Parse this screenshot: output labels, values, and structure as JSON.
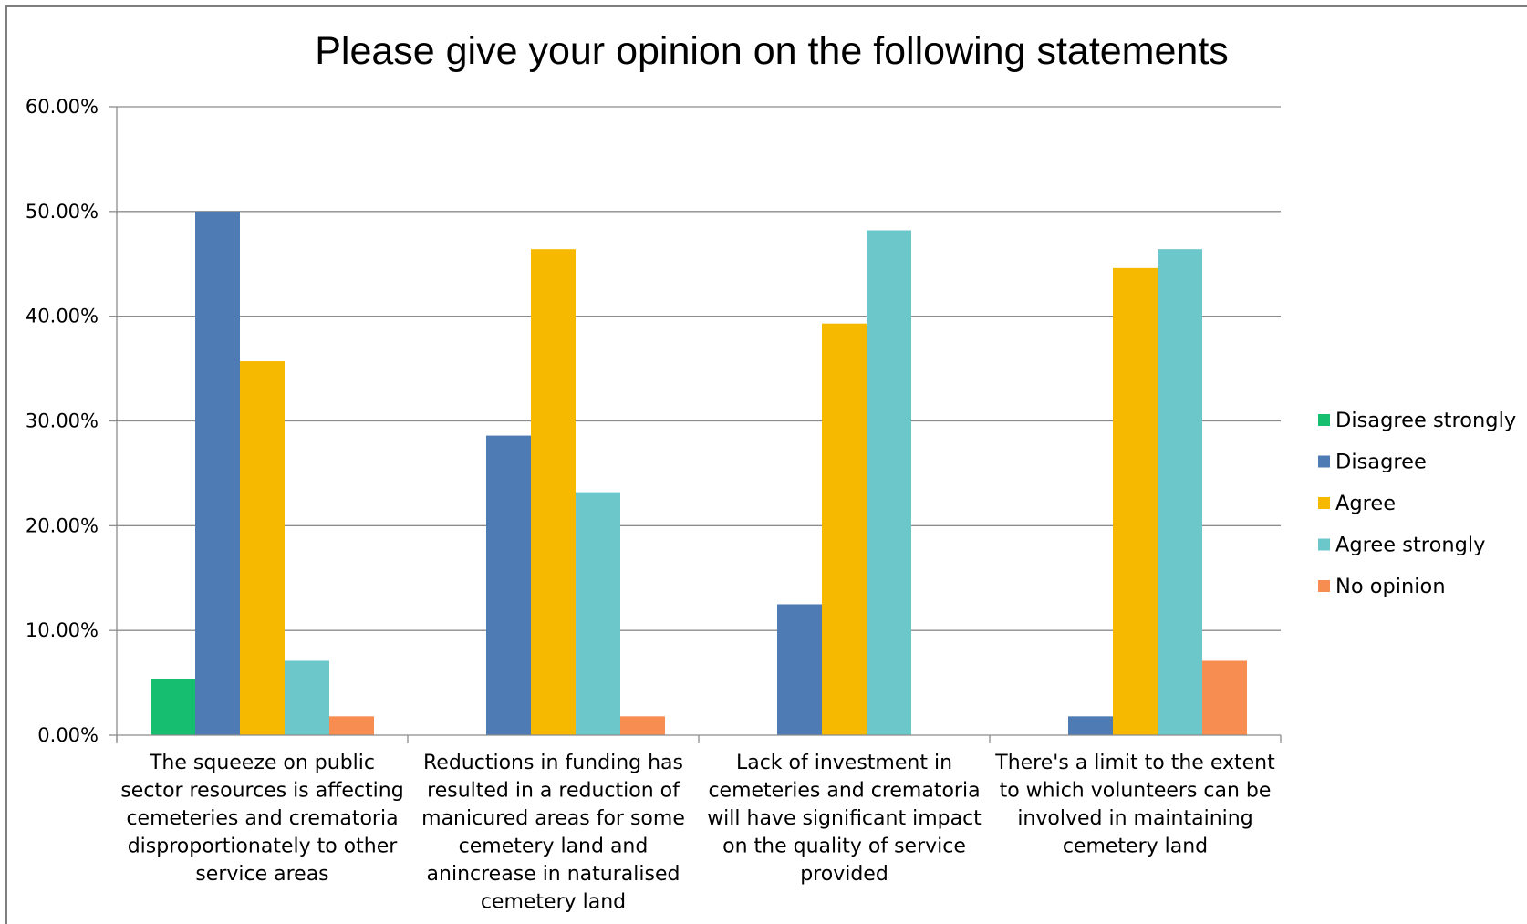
{
  "chart_data": {
    "type": "bar",
    "title": "Please give your opinion on the following statements",
    "xlabel": "",
    "ylabel": "",
    "ylim": [
      0,
      0.6
    ],
    "y_ticks": [
      "0.00%",
      "10.00%",
      "20.00%",
      "30.00%",
      "40.00%",
      "50.00%",
      "60.00%"
    ],
    "grid": true,
    "legend_position": "right",
    "categories": [
      [
        "The squeeze on public",
        "sector resources is affecting",
        "cemeteries and crematoria",
        "disproportionately to other",
        "service areas"
      ],
      [
        "Reductions in funding has",
        "resulted in a reduction of",
        "manicured areas for some",
        "cemetery land and",
        "anincrease in naturalised",
        "cemetery land"
      ],
      [
        "Lack of investment in",
        "cemeteries and crematoria",
        "will have significant impact",
        "on the quality of service",
        "provided"
      ],
      [
        "There's a limit to the extent",
        "to which volunteers can be",
        "involved in maintaining",
        "cemetery land"
      ]
    ],
    "series": [
      {
        "name": "Disagree strongly",
        "color": "#16bf6f",
        "values": [
          0.054,
          0.0,
          0.0,
          0.0
        ]
      },
      {
        "name": "Disagree",
        "color": "#4f7bb5",
        "values": [
          0.5,
          0.286,
          0.125,
          0.018
        ]
      },
      {
        "name": "Agree",
        "color": "#f6b900",
        "values": [
          0.357,
          0.464,
          0.393,
          0.446
        ]
      },
      {
        "name": "Agree strongly",
        "color": "#6cc7cb",
        "values": [
          0.071,
          0.232,
          0.482,
          0.464
        ]
      },
      {
        "name": "No opinion",
        "color": "#f88d52",
        "values": [
          0.018,
          0.018,
          0.0,
          0.071
        ]
      }
    ]
  }
}
